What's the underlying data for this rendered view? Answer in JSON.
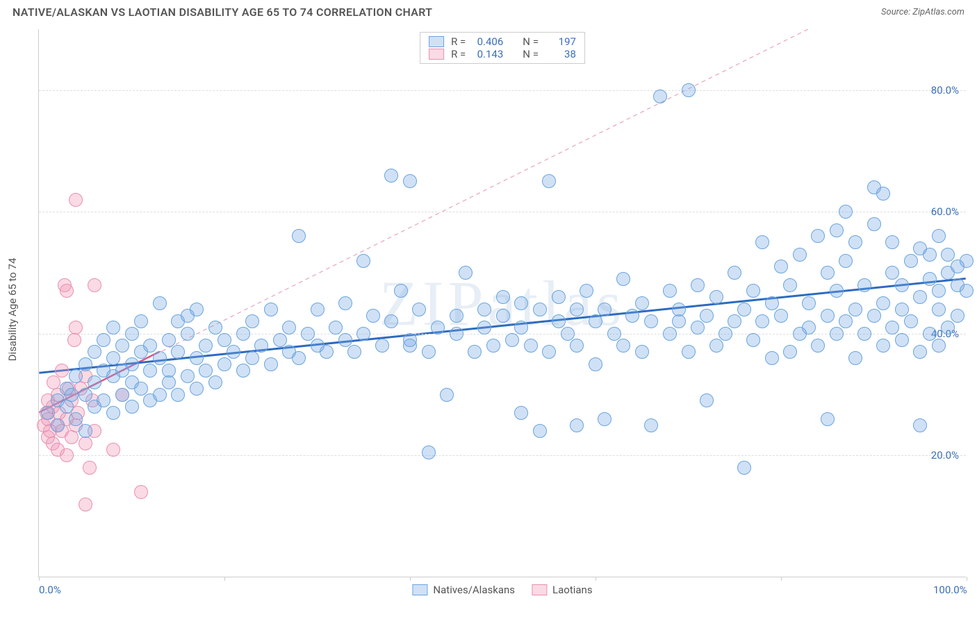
{
  "title": "NATIVE/ALASKAN VS LAOTIAN DISABILITY AGE 65 TO 74 CORRELATION CHART",
  "source": "Source: ZipAtlas.com",
  "watermark": "ZIPatlas",
  "y_axis_label": "Disability Age 65 to 74",
  "chart": {
    "type": "scatter",
    "xlim": [
      0,
      100
    ],
    "ylim": [
      0,
      90
    ],
    "y_ticks": [
      20,
      40,
      60,
      80
    ],
    "y_tick_labels": [
      "20.0%",
      "40.0%",
      "60.0%",
      "80.0%"
    ],
    "x_ticks": [
      0,
      20,
      40,
      60,
      80,
      100
    ],
    "x_tick_labels": [
      "0.0%",
      "",
      "",
      "",
      "",
      "100.0%"
    ],
    "background": "#ffffff",
    "grid_color": "#dddddd",
    "marker_radius": 10,
    "marker_stroke_width": 1,
    "series": [
      {
        "name": "Natives/Alaskans",
        "fill": "rgba(120,170,230,0.35)",
        "stroke": "#6aa4dd",
        "r": 0.406,
        "n": 197,
        "trend": {
          "x1": 0,
          "y1": 33.5,
          "x2": 100,
          "y2": 49,
          "color": "#2d6bc0",
          "width": 3,
          "dash": "none"
        },
        "points": [
          [
            1,
            27
          ],
          [
            2,
            25
          ],
          [
            2,
            29
          ],
          [
            3,
            28
          ],
          [
            3,
            31
          ],
          [
            3.5,
            30
          ],
          [
            4,
            26
          ],
          [
            4,
            33
          ],
          [
            5,
            24
          ],
          [
            5,
            30
          ],
          [
            5,
            35
          ],
          [
            6,
            28
          ],
          [
            6,
            32
          ],
          [
            6,
            37
          ],
          [
            7,
            29
          ],
          [
            7,
            34
          ],
          [
            7,
            39
          ],
          [
            8,
            27
          ],
          [
            8,
            33
          ],
          [
            8,
            36
          ],
          [
            8,
            41
          ],
          [
            9,
            30
          ],
          [
            9,
            34
          ],
          [
            9,
            38
          ],
          [
            10,
            28
          ],
          [
            10,
            32
          ],
          [
            10,
            35
          ],
          [
            10,
            40
          ],
          [
            11,
            31
          ],
          [
            11,
            37
          ],
          [
            11,
            42
          ],
          [
            12,
            29
          ],
          [
            12,
            34
          ],
          [
            12,
            38
          ],
          [
            13,
            30
          ],
          [
            13,
            36
          ],
          [
            13,
            45
          ],
          [
            14,
            32
          ],
          [
            14,
            39
          ],
          [
            14,
            34
          ],
          [
            15,
            30
          ],
          [
            15,
            37
          ],
          [
            15,
            42
          ],
          [
            16,
            33
          ],
          [
            16,
            40
          ],
          [
            16,
            43
          ],
          [
            17,
            31
          ],
          [
            17,
            36
          ],
          [
            17,
            44
          ],
          [
            18,
            34
          ],
          [
            18,
            38
          ],
          [
            19,
            32
          ],
          [
            19,
            41
          ],
          [
            20,
            35
          ],
          [
            20,
            39
          ],
          [
            21,
            37
          ],
          [
            22,
            34
          ],
          [
            22,
            40
          ],
          [
            23,
            36
          ],
          [
            23,
            42
          ],
          [
            24,
            38
          ],
          [
            25,
            35
          ],
          [
            25,
            44
          ],
          [
            26,
            39
          ],
          [
            27,
            37
          ],
          [
            27,
            41
          ],
          [
            28,
            36
          ],
          [
            28,
            56
          ],
          [
            29,
            40
          ],
          [
            30,
            38
          ],
          [
            30,
            44
          ],
          [
            31,
            37
          ],
          [
            32,
            41
          ],
          [
            33,
            39
          ],
          [
            33,
            45
          ],
          [
            34,
            37
          ],
          [
            35,
            40
          ],
          [
            35,
            52
          ],
          [
            36,
            43
          ],
          [
            37,
            38
          ],
          [
            38,
            42
          ],
          [
            38,
            66
          ],
          [
            39,
            47
          ],
          [
            40,
            38
          ],
          [
            40,
            39
          ],
          [
            40,
            65
          ],
          [
            41,
            44
          ],
          [
            42,
            20.5
          ],
          [
            42,
            37
          ],
          [
            43,
            41
          ],
          [
            44,
            30
          ],
          [
            45,
            40
          ],
          [
            45,
            43
          ],
          [
            46,
            50
          ],
          [
            47,
            37
          ],
          [
            48,
            41
          ],
          [
            48,
            44
          ],
          [
            49,
            38
          ],
          [
            50,
            43
          ],
          [
            50,
            46
          ],
          [
            51,
            39
          ],
          [
            52,
            27
          ],
          [
            52,
            41
          ],
          [
            52,
            45
          ],
          [
            53,
            38
          ],
          [
            54,
            24
          ],
          [
            54,
            44
          ],
          [
            55,
            37
          ],
          [
            55,
            65
          ],
          [
            56,
            42
          ],
          [
            56,
            46
          ],
          [
            57,
            40
          ],
          [
            58,
            25
          ],
          [
            58,
            38
          ],
          [
            58,
            44
          ],
          [
            59,
            47
          ],
          [
            60,
            35
          ],
          [
            60,
            42
          ],
          [
            61,
            26
          ],
          [
            61,
            44
          ],
          [
            62,
            40
          ],
          [
            63,
            38
          ],
          [
            63,
            49
          ],
          [
            64,
            43
          ],
          [
            65,
            37
          ],
          [
            65,
            45
          ],
          [
            66,
            25
          ],
          [
            66,
            42
          ],
          [
            67,
            79
          ],
          [
            68,
            40
          ],
          [
            68,
            47
          ],
          [
            69,
            42
          ],
          [
            69,
            44
          ],
          [
            70,
            37
          ],
          [
            70,
            80
          ],
          [
            71,
            41
          ],
          [
            71,
            48
          ],
          [
            72,
            29
          ],
          [
            72,
            43
          ],
          [
            73,
            38
          ],
          [
            73,
            46
          ],
          [
            74,
            40
          ],
          [
            75,
            42
          ],
          [
            75,
            50
          ],
          [
            76,
            18
          ],
          [
            76,
            44
          ],
          [
            77,
            39
          ],
          [
            77,
            47
          ],
          [
            78,
            42
          ],
          [
            78,
            55
          ],
          [
            79,
            36
          ],
          [
            79,
            45
          ],
          [
            80,
            43
          ],
          [
            80,
            51
          ],
          [
            81,
            37
          ],
          [
            81,
            48
          ],
          [
            82,
            40
          ],
          [
            82,
            53
          ],
          [
            83,
            41
          ],
          [
            83,
            45
          ],
          [
            84,
            38
          ],
          [
            84,
            56
          ],
          [
            85,
            26
          ],
          [
            85,
            43
          ],
          [
            85,
            50
          ],
          [
            86,
            40
          ],
          [
            86,
            47
          ],
          [
            86,
            57
          ],
          [
            87,
            42
          ],
          [
            87,
            52
          ],
          [
            87,
            60
          ],
          [
            88,
            36
          ],
          [
            88,
            44
          ],
          [
            88,
            55
          ],
          [
            89,
            40
          ],
          [
            89,
            48
          ],
          [
            90,
            43
          ],
          [
            90,
            58
          ],
          [
            90,
            64
          ],
          [
            91,
            38
          ],
          [
            91,
            45
          ],
          [
            91,
            63
          ],
          [
            92,
            41
          ],
          [
            92,
            50
          ],
          [
            92,
            55
          ],
          [
            93,
            39
          ],
          [
            93,
            44
          ],
          [
            93,
            48
          ],
          [
            94,
            42
          ],
          [
            94,
            52
          ],
          [
            95,
            25
          ],
          [
            95,
            37
          ],
          [
            95,
            46
          ],
          [
            95,
            54
          ],
          [
            96,
            40
          ],
          [
            96,
            49
          ],
          [
            96,
            53
          ],
          [
            97,
            38
          ],
          [
            97,
            44
          ],
          [
            97,
            47
          ],
          [
            97,
            56
          ],
          [
            98,
            41
          ],
          [
            98,
            50
          ],
          [
            98,
            53
          ],
          [
            99,
            43
          ],
          [
            99,
            48
          ],
          [
            99,
            51
          ],
          [
            100,
            47
          ],
          [
            100,
            52
          ]
        ]
      },
      {
        "name": "Laotians",
        "fill": "rgba(240,150,180,0.35)",
        "stroke": "#e890b0",
        "r": 0.143,
        "n": 38,
        "trend": {
          "x1": 0,
          "y1": 27,
          "x2": 13,
          "y2": 37,
          "color": "#d65a88",
          "width": 2.5,
          "dash": "none"
        },
        "diagonal": {
          "x1": 0,
          "y1": 27,
          "x2": 83,
          "y2": 90,
          "color": "#e9a3bd",
          "width": 1.2,
          "dash": "6,5"
        },
        "points": [
          [
            0.5,
            25
          ],
          [
            0.8,
            27
          ],
          [
            1,
            23
          ],
          [
            1,
            26
          ],
          [
            1,
            29
          ],
          [
            1.2,
            24
          ],
          [
            1.5,
            22
          ],
          [
            1.5,
            28
          ],
          [
            1.6,
            32
          ],
          [
            2,
            21
          ],
          [
            2,
            25
          ],
          [
            2,
            30
          ],
          [
            2.2,
            27
          ],
          [
            2.5,
            24
          ],
          [
            2.5,
            34
          ],
          [
            2.8,
            48
          ],
          [
            3,
            20
          ],
          [
            3,
            26
          ],
          [
            3,
            47
          ],
          [
            3.2,
            31
          ],
          [
            3.5,
            23
          ],
          [
            3.5,
            29
          ],
          [
            3.8,
            39
          ],
          [
            4,
            25
          ],
          [
            4,
            41
          ],
          [
            4,
            62
          ],
          [
            4.2,
            27
          ],
          [
            4.5,
            31
          ],
          [
            5,
            12
          ],
          [
            5,
            22
          ],
          [
            5,
            33
          ],
          [
            5.5,
            18
          ],
          [
            5.8,
            29
          ],
          [
            6,
            48
          ],
          [
            6,
            24
          ],
          [
            8,
            21
          ],
          [
            9,
            30
          ],
          [
            11,
            14
          ]
        ]
      }
    ]
  },
  "legend_top": {
    "r_label": "R =",
    "n_label": "N ="
  },
  "legend_bottom": {
    "items": [
      "Natives/Alaskans",
      "Laotians"
    ]
  }
}
